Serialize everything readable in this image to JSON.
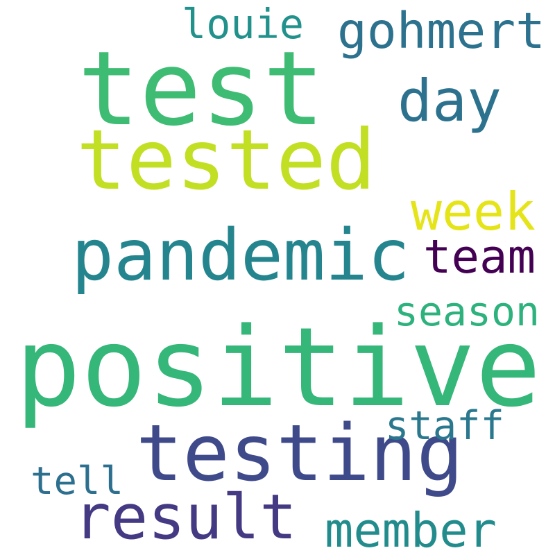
{
  "words": [
    {
      "text": "positive",
      "color": "#35b779"
    },
    {
      "text": "test",
      "color": "#3fbc73"
    },
    {
      "text": "tested",
      "color": "#c2df23"
    },
    {
      "text": "testing",
      "color": "#3f4a8a"
    },
    {
      "text": "pandemic",
      "color": "#25858e"
    },
    {
      "text": "result",
      "color": "#443983"
    },
    {
      "text": "day",
      "color": "#2c728e"
    },
    {
      "text": "gohmert",
      "color": "#2c728e"
    },
    {
      "text": "week",
      "color": "#e5e419"
    },
    {
      "text": "team",
      "color": "#440154"
    },
    {
      "text": "louie",
      "color": "#21918c"
    },
    {
      "text": "season",
      "color": "#2db27d"
    },
    {
      "text": "staff",
      "color": "#2a788e"
    },
    {
      "text": "member",
      "color": "#228c8d"
    },
    {
      "text": "tell",
      "color": "#2d6f8e"
    }
  ]
}
